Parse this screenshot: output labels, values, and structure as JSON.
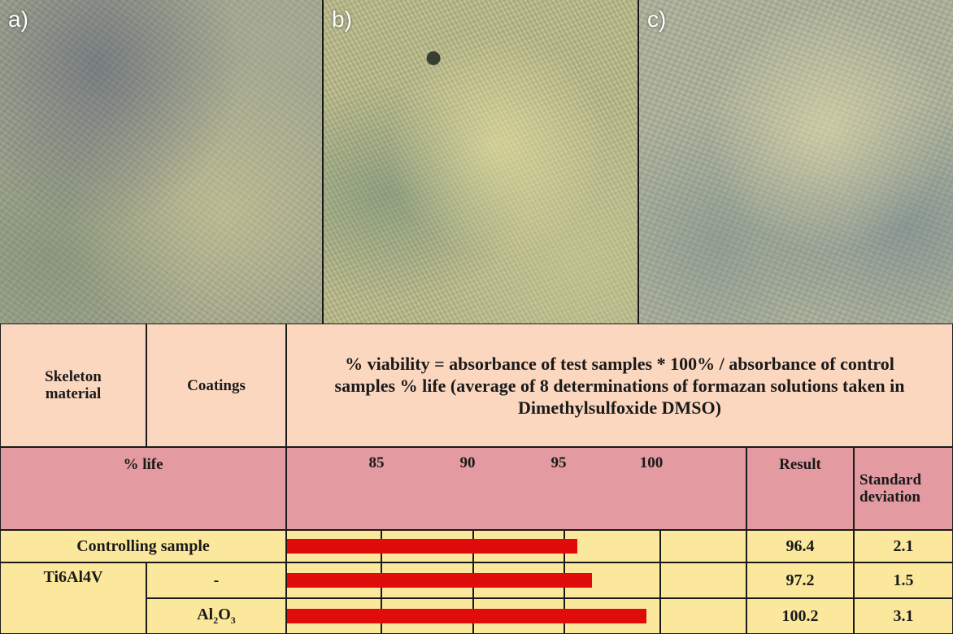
{
  "panels": [
    {
      "label": "a)"
    },
    {
      "label": "b)"
    },
    {
      "label": "c)"
    }
  ],
  "table": {
    "header": {
      "skeleton": "Skeleton material",
      "coatings": "Coatings",
      "formula": "% viability = absorbance of test samples * 100% / absorbance of control samples % life (average of 8 determinations of formazan solutions taken in Dimethylsulfoxide DMSO)"
    },
    "subheader": {
      "life": "% life",
      "ticks": [
        "85",
        "90",
        "95",
        "100"
      ],
      "result": "Result",
      "std": "Standard deviation"
    },
    "rows": [
      {
        "label": "Controlling sample",
        "result": "96.4",
        "std": "2.1"
      },
      {
        "skeleton": "Ti6Al4V",
        "coating": "-",
        "result": "97.2",
        "std": "1.5"
      },
      {
        "coating_main": "Al",
        "coating_sub1": "2",
        "coating_o": "O",
        "coating_sub2": "3",
        "result": "100.2",
        "std": "3.1"
      }
    ]
  },
  "chart_data": {
    "type": "bar",
    "orientation": "horizontal",
    "categories": [
      "Controlling sample",
      "-",
      "Al2O3"
    ],
    "values": [
      96.4,
      97.2,
      100.2
    ],
    "xticks": [
      85,
      90,
      95,
      100
    ],
    "xlabel": "% life",
    "bar_color": "#e00c0c"
  },
  "colors": {
    "header_bg": "#fcd7bf",
    "subheader_bg": "#e39aa1",
    "row_bg": "#fbe89c",
    "bar": "#e00c0c"
  }
}
